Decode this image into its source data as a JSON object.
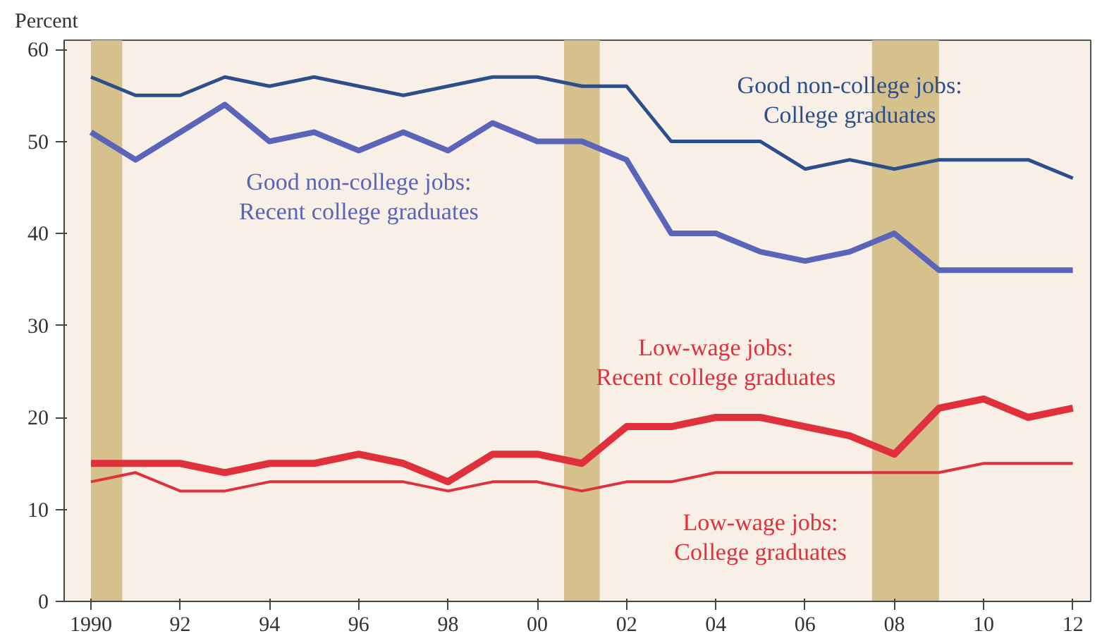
{
  "chart_data": {
    "type": "line",
    "ylabel": "Percent",
    "x": [
      1990,
      1991,
      1992,
      1993,
      1994,
      1995,
      1996,
      1997,
      1998,
      1999,
      2000,
      2001,
      2002,
      2003,
      2004,
      2005,
      2006,
      2007,
      2008,
      2009,
      2010,
      2011,
      2012
    ],
    "xlim": [
      1989.4,
      2012.4
    ],
    "ylim": [
      0,
      61
    ],
    "xticks": [
      {
        "value": 1990,
        "label": "1990"
      },
      {
        "value": 1992,
        "label": "92"
      },
      {
        "value": 1994,
        "label": "94"
      },
      {
        "value": 1996,
        "label": "96"
      },
      {
        "value": 1998,
        "label": "98"
      },
      {
        "value": 2000,
        "label": "00"
      },
      {
        "value": 2002,
        "label": "02"
      },
      {
        "value": 2004,
        "label": "04"
      },
      {
        "value": 2006,
        "label": "06"
      },
      {
        "value": 2008,
        "label": "08"
      },
      {
        "value": 2010,
        "label": "10"
      },
      {
        "value": 2012,
        "label": "12"
      }
    ],
    "yticks": [
      0,
      10,
      20,
      30,
      40,
      50,
      60
    ],
    "grid": false,
    "series": [
      {
        "name": "Good non-college jobs:\nCollege graduates",
        "color": "#2c4f8c",
        "values": [
          57,
          55,
          55,
          57,
          56,
          57,
          56,
          55,
          56,
          57,
          57,
          56,
          56,
          50,
          50,
          50,
          47,
          48,
          47,
          48,
          48,
          48,
          46
        ]
      },
      {
        "name": "Good non-college jobs:\nRecent college graduates",
        "color": "#5a64b8",
        "values": [
          51,
          48,
          51,
          54,
          50,
          51,
          49,
          51,
          49,
          52,
          50,
          50,
          48,
          40,
          40,
          38,
          37,
          38,
          40,
          36,
          36,
          36,
          36
        ]
      },
      {
        "name": "Low-wage jobs:\nRecent college graduates",
        "color": "#e0303c",
        "values": [
          15,
          15,
          15,
          14,
          15,
          15,
          16,
          15,
          13,
          16,
          16,
          15,
          19,
          19,
          20,
          20,
          19,
          18,
          16,
          21,
          22,
          20,
          21
        ]
      },
      {
        "name": "Low-wage jobs:\nCollege graduates",
        "color": "#e0303c",
        "values": [
          13,
          14,
          12,
          12,
          13,
          13,
          13,
          13,
          12,
          13,
          13,
          12,
          13,
          13,
          14,
          14,
          14,
          14,
          14,
          14,
          15,
          15,
          15
        ]
      }
    ],
    "bands": [
      {
        "axis": "x",
        "from": 1990.0,
        "to": 1990.7,
        "color": "#d6c08c"
      },
      {
        "axis": "x",
        "from": 2000.6,
        "to": 2001.4,
        "color": "#d6c08c"
      },
      {
        "axis": "x",
        "from": 2007.5,
        "to": 2009.0,
        "color": "#d6c08c"
      }
    ]
  }
}
